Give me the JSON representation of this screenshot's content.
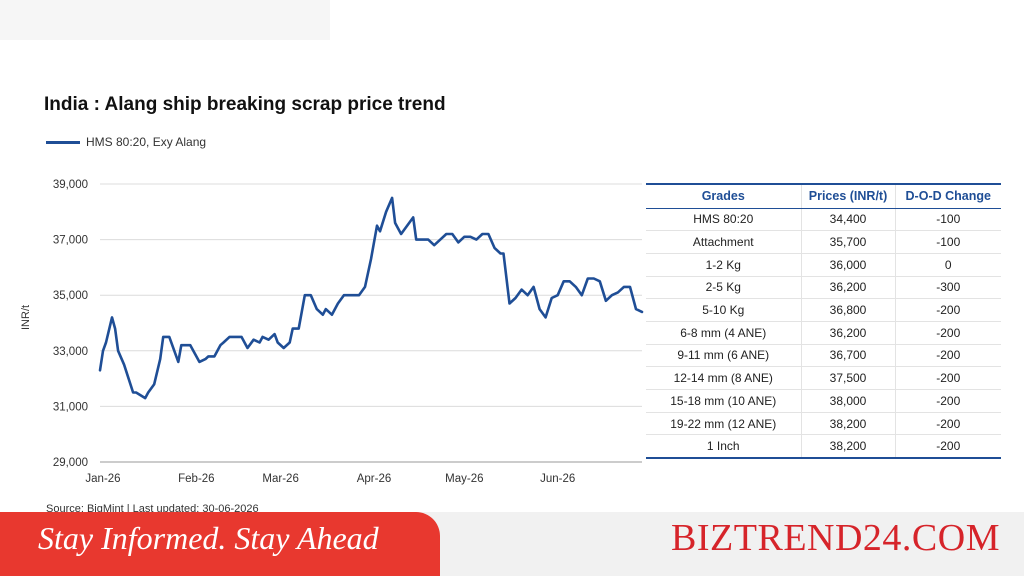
{
  "chart_data": {
    "type": "line",
    "title": "India : Alang ship breaking scrap price trend",
    "ylabel": "INR/t",
    "ylim": [
      29000,
      39000
    ],
    "yticks": [
      "29,000",
      "31,000",
      "33,000",
      "35,000",
      "37,000",
      "39,000"
    ],
    "xticks": [
      "Jan-26",
      "Feb-26",
      "Mar-26",
      "Apr-26",
      "May-26",
      "Jun-26"
    ],
    "grid": "horizontal",
    "legend": "top-left",
    "series": [
      {
        "name": "HMS 80:20, Exy Alang",
        "color": "#1f4e96",
        "x": [
          "2026-01-01",
          "2026-01-02",
          "2026-01-03",
          "2026-01-05",
          "2026-01-06",
          "2026-01-07",
          "2026-01-09",
          "2026-01-12",
          "2026-01-13",
          "2026-01-16",
          "2026-01-17",
          "2026-01-19",
          "2026-01-21",
          "2026-01-22",
          "2026-01-24",
          "2026-01-27",
          "2026-01-28",
          "2026-01-30",
          "2026-01-31",
          "2026-02-01",
          "2026-02-03",
          "2026-02-05",
          "2026-02-06",
          "2026-02-08",
          "2026-02-10",
          "2026-02-11",
          "2026-02-13",
          "2026-02-15",
          "2026-02-17",
          "2026-02-19",
          "2026-02-21",
          "2026-02-23",
          "2026-02-24",
          "2026-02-26",
          "2026-02-28",
          "2026-03-01",
          "2026-03-03",
          "2026-03-05",
          "2026-03-06",
          "2026-03-08",
          "2026-03-10",
          "2026-03-12",
          "2026-03-14",
          "2026-03-16",
          "2026-03-17",
          "2026-03-19",
          "2026-03-21",
          "2026-03-23",
          "2026-03-25",
          "2026-03-27",
          "2026-03-28",
          "2026-03-30",
          "2026-04-01",
          "2026-04-03",
          "2026-04-04",
          "2026-04-06",
          "2026-04-08",
          "2026-04-09",
          "2026-04-11",
          "2026-04-13",
          "2026-04-15",
          "2026-04-16",
          "2026-04-18",
          "2026-04-20",
          "2026-04-22",
          "2026-04-24",
          "2026-04-26",
          "2026-04-28",
          "2026-04-30",
          "2026-05-02",
          "2026-05-04",
          "2026-05-06",
          "2026-05-08",
          "2026-05-10",
          "2026-05-12",
          "2026-05-14",
          "2026-05-15",
          "2026-05-17",
          "2026-05-19",
          "2026-05-21",
          "2026-05-23",
          "2026-05-25",
          "2026-05-27",
          "2026-05-29",
          "2026-05-31",
          "2026-06-02",
          "2026-06-04",
          "2026-06-06",
          "2026-06-08",
          "2026-06-10",
          "2026-06-12",
          "2026-06-14",
          "2026-06-16",
          "2026-06-18",
          "2026-06-20",
          "2026-06-22",
          "2026-06-24",
          "2026-06-26",
          "2026-06-28",
          "2026-06-30"
        ],
        "values": [
          32300,
          33000,
          33300,
          34200,
          33800,
          33000,
          32500,
          31500,
          31500,
          31300,
          31500,
          31800,
          32700,
          33500,
          33500,
          32600,
          33200,
          33200,
          33200,
          33000,
          32600,
          32700,
          32800,
          32800,
          33200,
          33300,
          33500,
          33500,
          33500,
          33100,
          33400,
          33300,
          33500,
          33400,
          33600,
          33300,
          33100,
          33300,
          33800,
          33800,
          35000,
          35000,
          34500,
          34300,
          34500,
          34300,
          34700,
          35000,
          35000,
          35000,
          35000,
          35300,
          36300,
          37500,
          37300,
          38000,
          38500,
          37600,
          37200,
          37500,
          37800,
          37000,
          37000,
          37000,
          36800,
          37000,
          37200,
          37200,
          36900,
          37100,
          37100,
          37000,
          37200,
          37200,
          36700,
          36500,
          36500,
          34700,
          34900,
          35200,
          35000,
          35300,
          34500,
          34200,
          34900,
          35000,
          35500,
          35500,
          35300,
          35000,
          35600,
          35600,
          35500,
          34800,
          35000,
          35100,
          35300,
          35300,
          34500,
          34400
        ]
      }
    ]
  },
  "legend_label": "HMS 80:20, Exy Alang",
  "source_text": "Source: BigMint | Last updated: 30-06-2026",
  "table": {
    "headers": [
      "Grades",
      "Prices (INR/t)",
      "D-O-D Change"
    ],
    "rows": [
      {
        "grade": "HMS 80:20",
        "price": "34,400",
        "change": "-100"
      },
      {
        "grade": "Attachment",
        "price": "35,700",
        "change": "-100"
      },
      {
        "grade": "1-2 Kg",
        "price": "36,000",
        "change": "0"
      },
      {
        "grade": "2-5 Kg",
        "price": "36,200",
        "change": "-300"
      },
      {
        "grade": "5-10 Kg",
        "price": "36,800",
        "change": "-200"
      },
      {
        "grade": "6-8 mm (4 ANE)",
        "price": "36,200",
        "change": "-200"
      },
      {
        "grade": "9-11 mm (6 ANE)",
        "price": "36,700",
        "change": "-200"
      },
      {
        "grade": "12-14 mm (8 ANE)",
        "price": "37,500",
        "change": "-200"
      },
      {
        "grade": "15-18 mm (10 ANE)",
        "price": "38,000",
        "change": "-200"
      },
      {
        "grade": "19-22 mm (12 ANE)",
        "price": "38,200",
        "change": "-200"
      },
      {
        "grade": "1 Inch",
        "price": "38,200",
        "change": "-200"
      }
    ]
  },
  "banner": {
    "tagline": "Stay Informed. Stay Ahead",
    "brand": "BIZTREND24.COM"
  },
  "colors": {
    "line": "#1f4e96",
    "negative": "#d82a2a",
    "banner_red": "#e8382f",
    "brand_red": "#d6242a"
  }
}
